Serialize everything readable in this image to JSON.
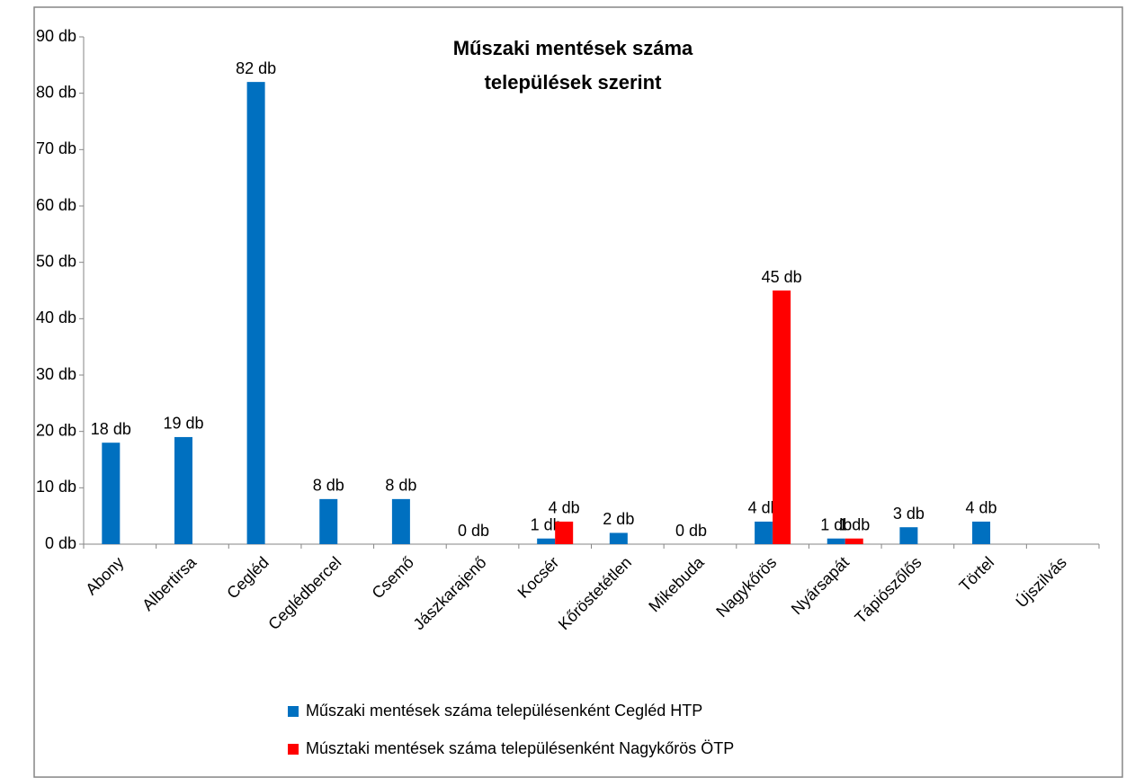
{
  "chart_data": {
    "type": "bar",
    "title": [
      "Műszaki mentések száma",
      "települések szerint"
    ],
    "categories": [
      "Abony",
      "Albertirsa",
      "Cegléd",
      "Ceglédbercel",
      "Csemő",
      "Jászkarajenő",
      "Kocsér",
      "Kőröstetétlen",
      "Mikebuda",
      "Nagykőrös",
      "Nyársapát",
      "Tápiószőlős",
      "Törtel",
      "Újszilvás"
    ],
    "series": [
      {
        "name": "Műszaki mentések száma településenként Cegléd HTP",
        "color": "#0070c0",
        "values": [
          18,
          19,
          82,
          8,
          8,
          0,
          1,
          2,
          0,
          4,
          1,
          3,
          4,
          null
        ],
        "value_labels": [
          "18 db",
          "19 db",
          "82 db",
          "8 db",
          "8 db",
          "0 db",
          "1 db",
          "2 db",
          "0 db",
          "4 db",
          "1 db",
          "3 db",
          "4 db",
          null
        ]
      },
      {
        "name": "Músztaki mentések száma településenként Nagykőrös ÖTP",
        "color": "#ff0000",
        "values": [
          null,
          null,
          null,
          null,
          null,
          null,
          4,
          null,
          null,
          45,
          1,
          null,
          null,
          null
        ],
        "value_labels": [
          null,
          null,
          null,
          null,
          null,
          null,
          "4 db",
          null,
          null,
          "45 db",
          "1 db",
          null,
          null,
          null
        ]
      }
    ],
    "ylim": [
      0,
      90
    ],
    "yticks": [
      {
        "value": 0,
        "label": "0 db"
      },
      {
        "value": 10,
        "label": "10 db"
      },
      {
        "value": 20,
        "label": "20 db"
      },
      {
        "value": 30,
        "label": "30 db"
      },
      {
        "value": 40,
        "label": "40 db"
      },
      {
        "value": 50,
        "label": "50 db"
      },
      {
        "value": 60,
        "label": "60 db"
      },
      {
        "value": 70,
        "label": "70 db"
      },
      {
        "value": 80,
        "label": "80 db"
      },
      {
        "value": 90,
        "label": "90 db"
      }
    ],
    "grid": false,
    "legend": "bottom"
  }
}
